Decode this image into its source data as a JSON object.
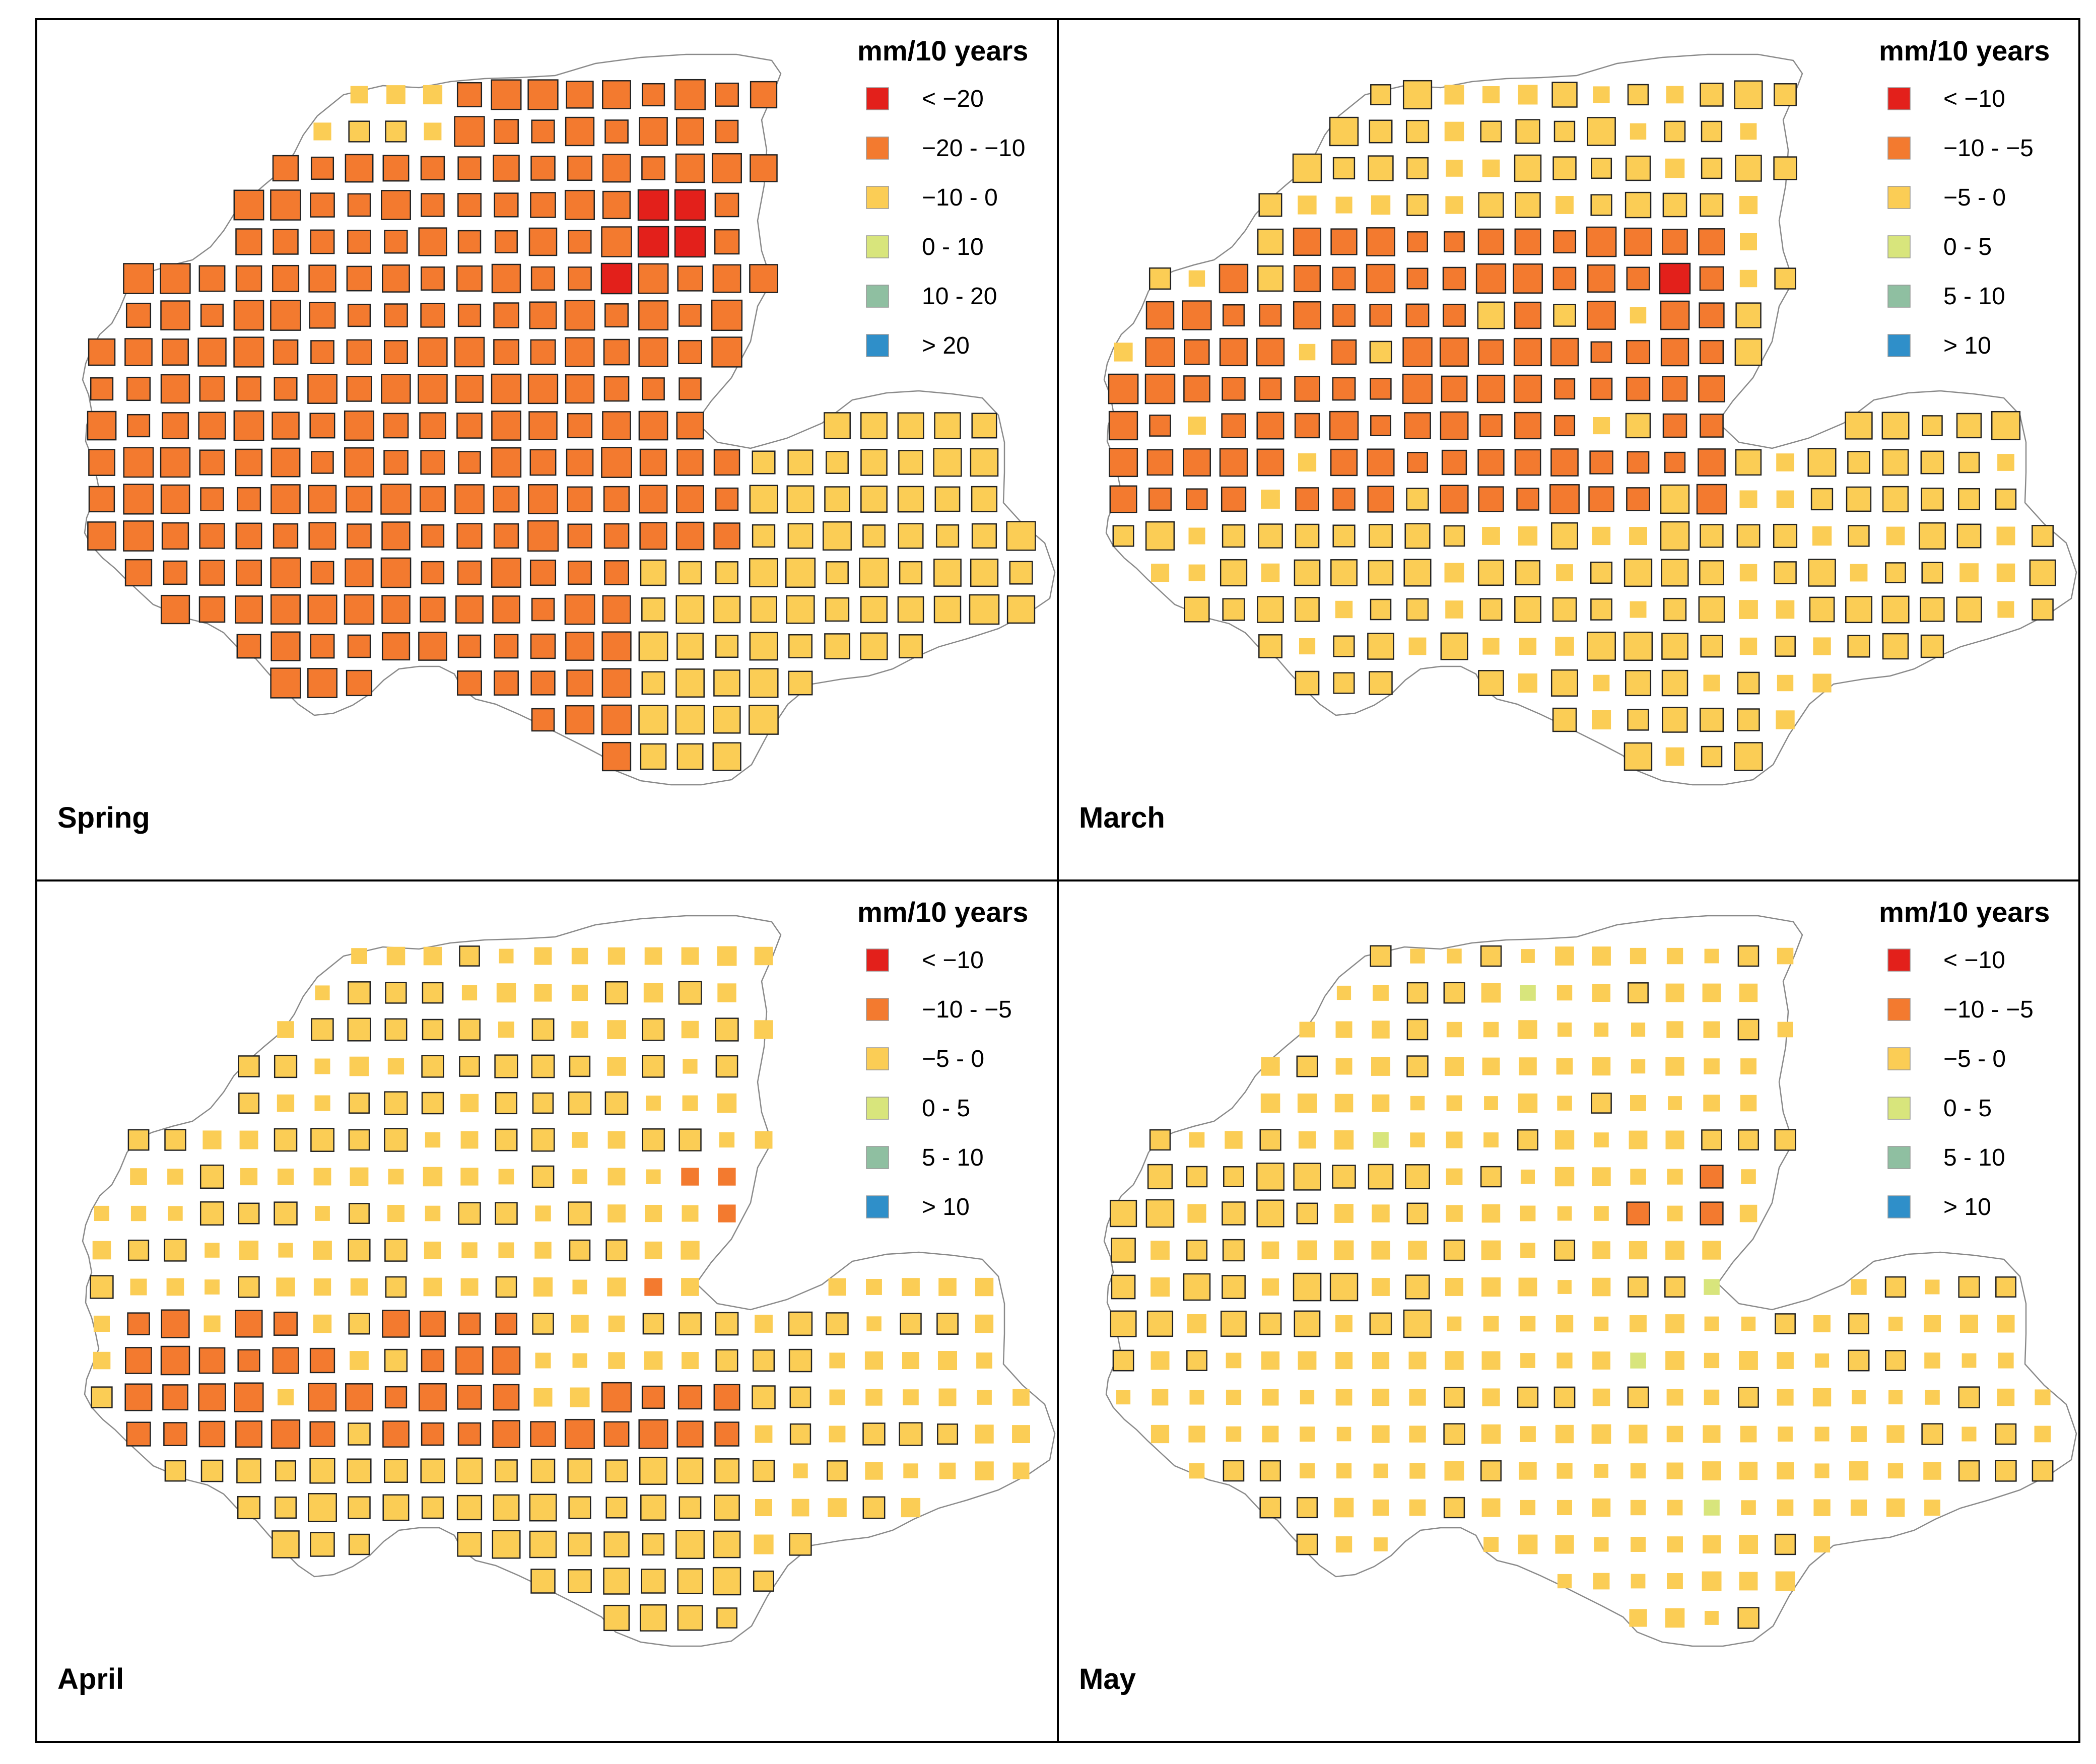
{
  "figure": {
    "panels": [
      {
        "id": "spring",
        "title": "Spring",
        "legend": {
          "title": "mm/10 years",
          "classes": [
            {
              "label": "< −20",
              "color": "#e3201b"
            },
            {
              "label": "−20 - −10",
              "color": "#f37a2f"
            },
            {
              "label": "−10 - 0",
              "color": "#fbcd55"
            },
            {
              "label": "0 - 10",
              "color": "#d8e57c"
            },
            {
              "label": "10 - 20",
              "color": "#8fbfa1"
            },
            {
              "label": "> 20",
              "color": "#2f8fc9"
            }
          ]
        },
        "grid_pattern": {
          "mode": "spring",
          "hotspots": 4
        }
      },
      {
        "id": "march",
        "title": "March",
        "legend": {
          "title": "mm/10 years",
          "classes": [
            {
              "label": "< −10",
              "color": "#e3201b"
            },
            {
              "label": "−10 - −5",
              "color": "#f37a2f"
            },
            {
              "label": "−5 - 0",
              "color": "#fbcd55"
            },
            {
              "label": "0 - 5",
              "color": "#d8e57c"
            },
            {
              "label": "5 - 10",
              "color": "#8fbfa1"
            },
            {
              "label": "> 10",
              "color": "#2f8fc9"
            }
          ]
        },
        "grid_pattern": {
          "mode": "march",
          "hotspots": 1
        }
      },
      {
        "id": "april",
        "title": "April",
        "legend": {
          "title": "mm/10 years",
          "classes": [
            {
              "label": "< −10",
              "color": "#e3201b"
            },
            {
              "label": "−10 - −5",
              "color": "#f37a2f"
            },
            {
              "label": "−5 - 0",
              "color": "#fbcd55"
            },
            {
              "label": "0 - 5",
              "color": "#d8e57c"
            },
            {
              "label": "5 - 10",
              "color": "#8fbfa1"
            },
            {
              "label": "> 10",
              "color": "#2f8fc9"
            }
          ]
        },
        "grid_pattern": {
          "mode": "april",
          "hotspots": 0
        }
      },
      {
        "id": "may",
        "title": "May",
        "legend": {
          "title": "mm/10 years",
          "classes": [
            {
              "label": "< −10",
              "color": "#e3201b"
            },
            {
              "label": "−10 - −5",
              "color": "#f37a2f"
            },
            {
              "label": "−5 - 0",
              "color": "#fbcd55"
            },
            {
              "label": "0 - 5",
              "color": "#d8e57c"
            },
            {
              "label": "5 - 10",
              "color": "#8fbfa1"
            },
            {
              "label": "> 10",
              "color": "#2f8fc9"
            }
          ]
        },
        "grid_pattern": {
          "mode": "may",
          "hotspots": 0
        }
      }
    ]
  }
}
